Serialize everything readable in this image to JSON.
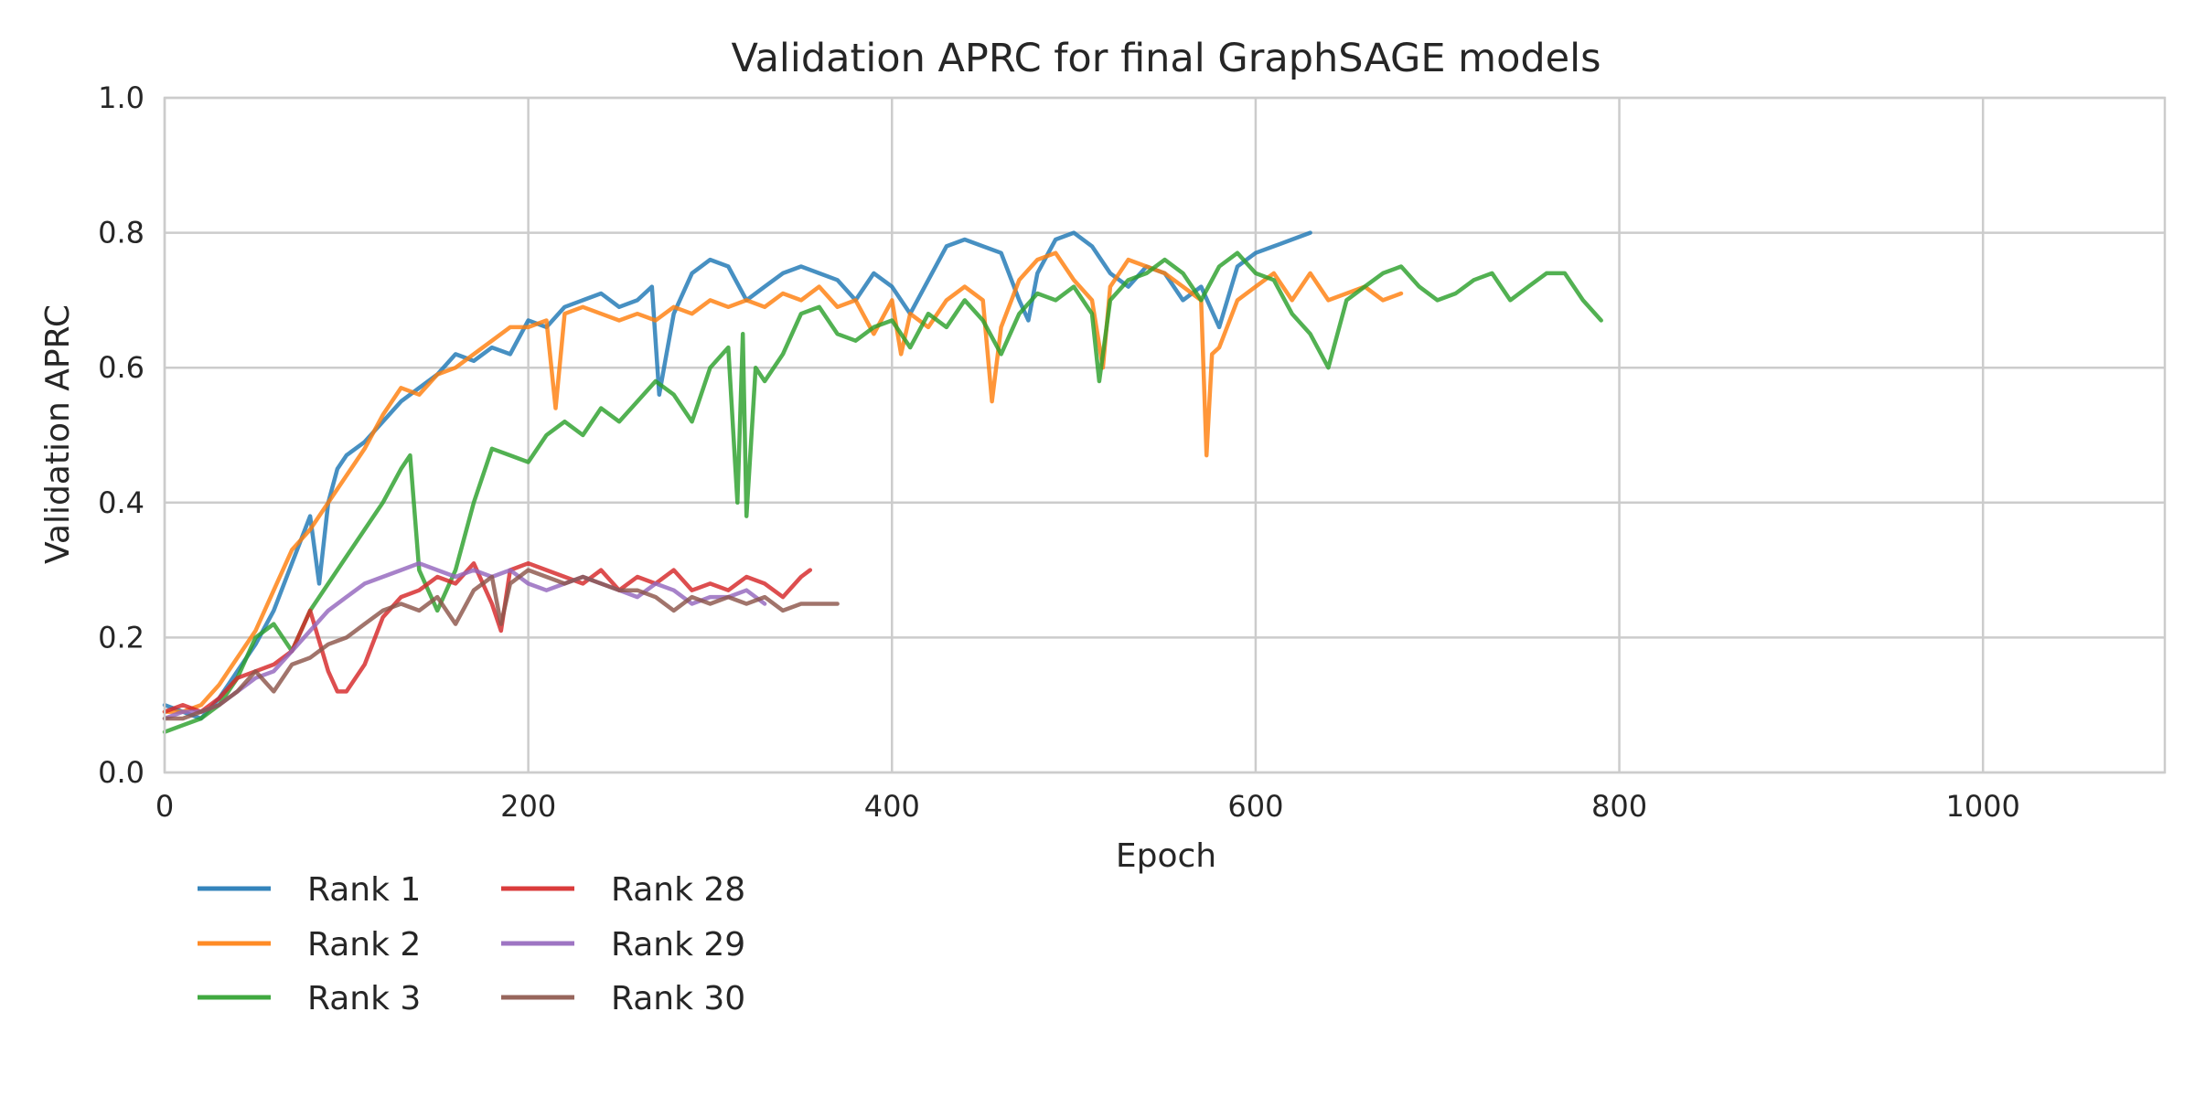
{
  "chart_data": {
    "type": "line",
    "title": "Validation APRC for final GraphSAGE models",
    "xlabel": "Epoch",
    "ylabel": "Validation APRC",
    "xlim": [
      0,
      1100
    ],
    "ylim": [
      0.0,
      1.0
    ],
    "xticks": [
      0,
      200,
      400,
      600,
      800,
      1000
    ],
    "yticks": [
      0.0,
      0.2,
      0.4,
      0.6,
      0.8,
      1.0
    ],
    "xtick_labels": [
      "0",
      "200",
      "400",
      "600",
      "800",
      "1000"
    ],
    "ytick_labels": [
      "0.0",
      "0.2",
      "0.4",
      "0.6",
      "0.8",
      "1.0"
    ],
    "grid": true,
    "legend_position": "below-left",
    "series": [
      {
        "name": "Rank 1",
        "color": "#1f77b4",
        "x": [
          0,
          10,
          20,
          30,
          40,
          50,
          60,
          70,
          80,
          85,
          90,
          95,
          100,
          110,
          120,
          130,
          140,
          150,
          160,
          170,
          180,
          190,
          200,
          210,
          220,
          230,
          240,
          250,
          260,
          268,
          272,
          276,
          280,
          290,
          300,
          310,
          320,
          330,
          340,
          350,
          360,
          370,
          380,
          390,
          400,
          410,
          420,
          430,
          440,
          450,
          460,
          470,
          475,
          480,
          490,
          500,
          510,
          520,
          530,
          540,
          550,
          560,
          570,
          580,
          590,
          600,
          610,
          620,
          630
        ],
        "y": [
          0.1,
          0.09,
          0.08,
          0.11,
          0.15,
          0.19,
          0.24,
          0.31,
          0.38,
          0.28,
          0.4,
          0.45,
          0.47,
          0.49,
          0.52,
          0.55,
          0.57,
          0.59,
          0.62,
          0.61,
          0.63,
          0.62,
          0.67,
          0.66,
          0.69,
          0.7,
          0.71,
          0.69,
          0.7,
          0.72,
          0.56,
          0.62,
          0.68,
          0.74,
          0.76,
          0.75,
          0.7,
          0.72,
          0.74,
          0.75,
          0.74,
          0.73,
          0.7,
          0.74,
          0.72,
          0.68,
          0.73,
          0.78,
          0.79,
          0.78,
          0.77,
          0.7,
          0.67,
          0.74,
          0.79,
          0.8,
          0.78,
          0.74,
          0.72,
          0.75,
          0.74,
          0.7,
          0.72,
          0.66,
          0.75,
          0.77,
          0.78,
          0.79,
          0.8
        ]
      },
      {
        "name": "Rank 2",
        "color": "#ff7f0e",
        "x": [
          0,
          10,
          20,
          30,
          40,
          50,
          60,
          70,
          80,
          90,
          100,
          110,
          120,
          130,
          140,
          150,
          160,
          170,
          180,
          190,
          200,
          210,
          215,
          220,
          230,
          240,
          250,
          260,
          270,
          280,
          290,
          300,
          310,
          320,
          330,
          340,
          350,
          360,
          370,
          380,
          390,
          400,
          405,
          410,
          420,
          430,
          440,
          450,
          455,
          460,
          470,
          480,
          490,
          500,
          510,
          516,
          520,
          530,
          540,
          550,
          560,
          570,
          573,
          576,
          580,
          590,
          600,
          610,
          620,
          630,
          640,
          650,
          660,
          670,
          680
        ],
        "y": [
          0.09,
          0.09,
          0.1,
          0.13,
          0.17,
          0.21,
          0.27,
          0.33,
          0.36,
          0.4,
          0.44,
          0.48,
          0.53,
          0.57,
          0.56,
          0.59,
          0.6,
          0.62,
          0.64,
          0.66,
          0.66,
          0.67,
          0.54,
          0.68,
          0.69,
          0.68,
          0.67,
          0.68,
          0.67,
          0.69,
          0.68,
          0.7,
          0.69,
          0.7,
          0.69,
          0.71,
          0.7,
          0.72,
          0.69,
          0.7,
          0.65,
          0.7,
          0.62,
          0.68,
          0.66,
          0.7,
          0.72,
          0.7,
          0.55,
          0.66,
          0.73,
          0.76,
          0.77,
          0.73,
          0.7,
          0.6,
          0.72,
          0.76,
          0.75,
          0.74,
          0.72,
          0.7,
          0.47,
          0.62,
          0.63,
          0.7,
          0.72,
          0.74,
          0.7,
          0.74,
          0.7,
          0.71,
          0.72,
          0.7,
          0.71
        ]
      },
      {
        "name": "Rank 3",
        "color": "#2ca02c",
        "x": [
          0,
          10,
          20,
          30,
          40,
          50,
          60,
          70,
          80,
          90,
          100,
          110,
          120,
          130,
          135,
          140,
          150,
          160,
          170,
          180,
          190,
          200,
          210,
          220,
          230,
          240,
          250,
          260,
          270,
          280,
          290,
          300,
          310,
          315,
          318,
          320,
          325,
          330,
          340,
          350,
          360,
          370,
          380,
          390,
          400,
          410,
          420,
          430,
          440,
          450,
          460,
          470,
          480,
          490,
          500,
          510,
          514,
          520,
          530,
          540,
          550,
          560,
          570,
          580,
          590,
          600,
          610,
          620,
          630,
          640,
          650,
          660,
          670,
          680,
          690,
          700,
          710,
          720,
          730,
          740,
          750,
          760,
          770,
          780,
          790
        ],
        "y": [
          0.06,
          0.07,
          0.08,
          0.1,
          0.14,
          0.2,
          0.22,
          0.18,
          0.24,
          0.28,
          0.32,
          0.36,
          0.4,
          0.45,
          0.47,
          0.3,
          0.24,
          0.3,
          0.4,
          0.48,
          0.47,
          0.46,
          0.5,
          0.52,
          0.5,
          0.54,
          0.52,
          0.55,
          0.58,
          0.56,
          0.52,
          0.6,
          0.63,
          0.4,
          0.65,
          0.38,
          0.6,
          0.58,
          0.62,
          0.68,
          0.69,
          0.65,
          0.64,
          0.66,
          0.67,
          0.63,
          0.68,
          0.66,
          0.7,
          0.67,
          0.62,
          0.68,
          0.71,
          0.7,
          0.72,
          0.68,
          0.58,
          0.7,
          0.73,
          0.74,
          0.76,
          0.74,
          0.7,
          0.75,
          0.77,
          0.74,
          0.73,
          0.68,
          0.65,
          0.6,
          0.7,
          0.72,
          0.74,
          0.75,
          0.72,
          0.7,
          0.71,
          0.73,
          0.74,
          0.7,
          0.72,
          0.74,
          0.74,
          0.7,
          0.67
        ]
      },
      {
        "name": "Rank 28",
        "color": "#d62728",
        "x": [
          0,
          10,
          20,
          30,
          40,
          50,
          60,
          70,
          80,
          90,
          95,
          100,
          110,
          120,
          130,
          140,
          150,
          160,
          170,
          180,
          185,
          190,
          200,
          210,
          220,
          230,
          240,
          250,
          260,
          270,
          280,
          290,
          300,
          310,
          320,
          330,
          340,
          350,
          355
        ],
        "y": [
          0.09,
          0.1,
          0.09,
          0.11,
          0.14,
          0.15,
          0.16,
          0.18,
          0.24,
          0.15,
          0.12,
          0.12,
          0.16,
          0.23,
          0.26,
          0.27,
          0.29,
          0.28,
          0.31,
          0.25,
          0.21,
          0.3,
          0.31,
          0.3,
          0.29,
          0.28,
          0.3,
          0.27,
          0.29,
          0.28,
          0.3,
          0.27,
          0.28,
          0.27,
          0.29,
          0.28,
          0.26,
          0.29,
          0.3
        ]
      },
      {
        "name": "Rank 29",
        "color": "#9467bd",
        "x": [
          0,
          10,
          20,
          30,
          40,
          50,
          60,
          70,
          80,
          90,
          100,
          110,
          120,
          130,
          140,
          150,
          160,
          170,
          180,
          190,
          200,
          210,
          220,
          230,
          240,
          250,
          260,
          270,
          280,
          290,
          300,
          310,
          320,
          330
        ],
        "y": [
          0.08,
          0.09,
          0.09,
          0.1,
          0.12,
          0.14,
          0.15,
          0.18,
          0.21,
          0.24,
          0.26,
          0.28,
          0.29,
          0.3,
          0.31,
          0.3,
          0.29,
          0.3,
          0.29,
          0.3,
          0.28,
          0.27,
          0.28,
          0.29,
          0.28,
          0.27,
          0.26,
          0.28,
          0.27,
          0.25,
          0.26,
          0.26,
          0.27,
          0.25
        ]
      },
      {
        "name": "Rank 30",
        "color": "#8c564b",
        "x": [
          0,
          10,
          20,
          30,
          40,
          50,
          60,
          70,
          80,
          90,
          100,
          110,
          120,
          130,
          140,
          150,
          160,
          170,
          180,
          185,
          190,
          200,
          210,
          220,
          230,
          240,
          250,
          260,
          270,
          280,
          290,
          300,
          310,
          320,
          330,
          340,
          350,
          360,
          370
        ],
        "y": [
          0.08,
          0.08,
          0.09,
          0.1,
          0.12,
          0.15,
          0.12,
          0.16,
          0.17,
          0.19,
          0.2,
          0.22,
          0.24,
          0.25,
          0.24,
          0.26,
          0.22,
          0.27,
          0.29,
          0.22,
          0.28,
          0.3,
          0.29,
          0.28,
          0.29,
          0.28,
          0.27,
          0.27,
          0.26,
          0.24,
          0.26,
          0.25,
          0.26,
          0.25,
          0.26,
          0.24,
          0.25,
          0.25,
          0.25
        ]
      }
    ]
  }
}
